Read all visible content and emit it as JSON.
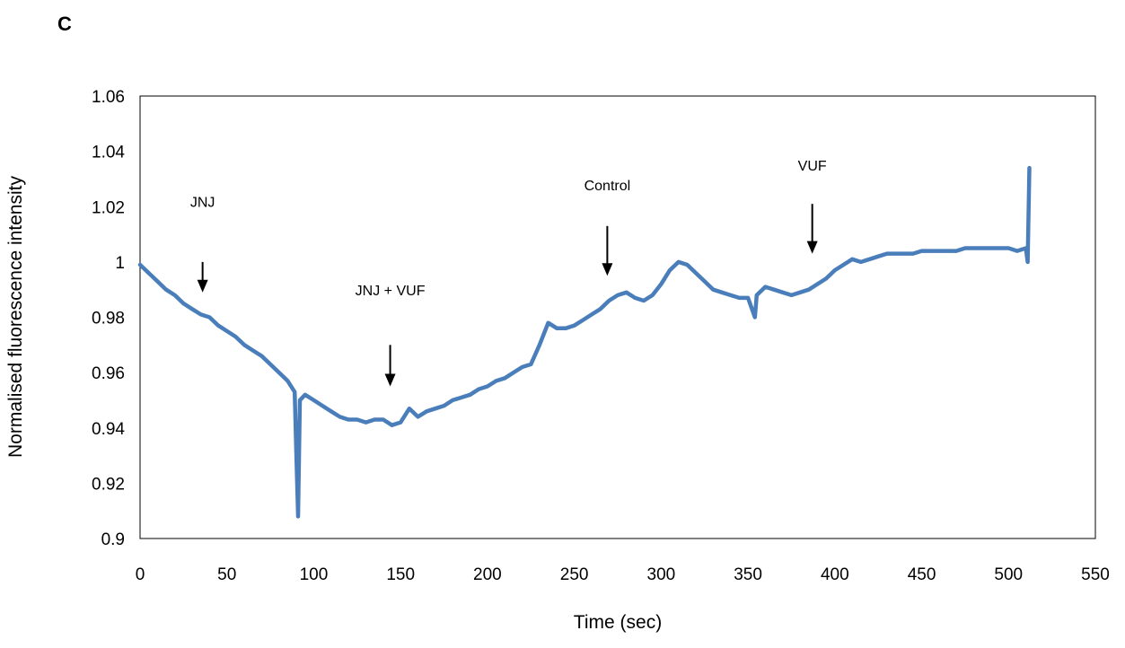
{
  "panel_label": "C",
  "colors": {
    "series": "#4a7ebb",
    "axis": "#000000"
  },
  "chart_data": {
    "type": "line",
    "title": "",
    "xlabel": "Time (sec)",
    "ylabel": "Normalised  fluorescence  intensity",
    "xlim": [
      0,
      550
    ],
    "ylim": [
      0.9,
      1.06
    ],
    "xticks": [
      0,
      50,
      100,
      150,
      200,
      250,
      300,
      350,
      400,
      450,
      500,
      550
    ],
    "yticks": [
      0.9,
      0.92,
      0.94,
      0.96,
      0.98,
      1,
      1.02,
      1.04,
      1.06
    ],
    "grid": false,
    "legend": "none",
    "series": [
      {
        "x": [
          0,
          5,
          10,
          15,
          20,
          25,
          30,
          35,
          40,
          45,
          50,
          55,
          60,
          65,
          70,
          75,
          80,
          85,
          89,
          90,
          91,
          92,
          95,
          100,
          105,
          110,
          115,
          120,
          125,
          130,
          135,
          140,
          145,
          150,
          155,
          160,
          165,
          170,
          175,
          180,
          185,
          190,
          195,
          200,
          205,
          210,
          215,
          220,
          225,
          230,
          235,
          240,
          245,
          250,
          255,
          260,
          265,
          270,
          275,
          280,
          285,
          290,
          295,
          300,
          305,
          310,
          315,
          320,
          325,
          330,
          335,
          340,
          345,
          350,
          354,
          355,
          360,
          365,
          370,
          375,
          380,
          385,
          390,
          395,
          400,
          405,
          410,
          415,
          420,
          425,
          430,
          435,
          440,
          445,
          450,
          455,
          460,
          465,
          470,
          475,
          480,
          485,
          490,
          495,
          500,
          505,
          510,
          511,
          512
        ],
        "y": [
          0.999,
          0.996,
          0.993,
          0.99,
          0.988,
          0.985,
          0.983,
          0.981,
          0.98,
          0.977,
          0.975,
          0.973,
          0.97,
          0.968,
          0.966,
          0.963,
          0.96,
          0.957,
          0.953,
          0.93,
          0.908,
          0.95,
          0.952,
          0.95,
          0.948,
          0.946,
          0.944,
          0.943,
          0.943,
          0.942,
          0.943,
          0.943,
          0.941,
          0.942,
          0.947,
          0.944,
          0.946,
          0.947,
          0.948,
          0.95,
          0.951,
          0.952,
          0.954,
          0.955,
          0.957,
          0.958,
          0.96,
          0.962,
          0.963,
          0.97,
          0.978,
          0.976,
          0.976,
          0.977,
          0.979,
          0.981,
          0.983,
          0.986,
          0.988,
          0.989,
          0.987,
          0.986,
          0.988,
          0.992,
          0.997,
          1.0,
          0.999,
          0.996,
          0.993,
          0.99,
          0.989,
          0.988,
          0.987,
          0.987,
          0.98,
          0.988,
          0.991,
          0.99,
          0.989,
          0.988,
          0.989,
          0.99,
          0.992,
          0.994,
          0.997,
          0.999,
          1.001,
          1.0,
          1.001,
          1.002,
          1.003,
          1.003,
          1.003,
          1.003,
          1.004,
          1.004,
          1.004,
          1.004,
          1.004,
          1.005,
          1.005,
          1.005,
          1.005,
          1.005,
          1.005,
          1.004,
          1.005,
          1.0,
          1.034
        ]
      }
    ],
    "annotations": [
      {
        "label": "JNJ",
        "x": 36,
        "label_y": 1.02,
        "arrow_from": 1.0,
        "arrow_to": 0.989
      },
      {
        "label": "JNJ + VUF",
        "x": 144,
        "label_y": 0.988,
        "arrow_from": 0.97,
        "arrow_to": 0.955
      },
      {
        "label": "Control",
        "x": 269,
        "label_y": 1.026,
        "arrow_from": 1.013,
        "arrow_to": 0.995
      },
      {
        "label": "VUF",
        "x": 387,
        "label_y": 1.033,
        "arrow_from": 1.021,
        "arrow_to": 1.003
      }
    ]
  }
}
